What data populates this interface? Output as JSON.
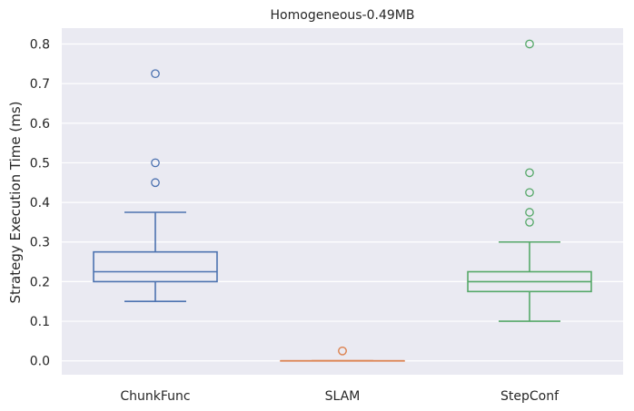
{
  "chart_data": {
    "type": "box",
    "title": "Homogeneous-0.49MB",
    "xlabel": "",
    "ylabel": "Strategy Execution Time (ms)",
    "ylim": [
      -0.035,
      0.84
    ],
    "yticks": [
      0.0,
      0.1,
      0.2,
      0.3,
      0.4,
      0.5,
      0.6,
      0.7,
      0.8
    ],
    "ytick_labels": [
      "0.0",
      "0.1",
      "0.2",
      "0.3",
      "0.4",
      "0.5",
      "0.6",
      "0.7",
      "0.8"
    ],
    "grid": true,
    "categories": [
      "ChunkFunc",
      "SLAM",
      "StepConf"
    ],
    "boxes": [
      {
        "category": "ChunkFunc",
        "color": "#4c72b0",
        "whisker_low": 0.15,
        "q1": 0.2,
        "median": 0.225,
        "q3": 0.275,
        "whisker_high": 0.375,
        "outliers": [
          0.45,
          0.5,
          0.725
        ]
      },
      {
        "category": "SLAM",
        "color": "#dd8452",
        "whisker_low": 0.0,
        "q1": 0.0,
        "median": 0.0,
        "q3": 0.0,
        "whisker_high": 0.0,
        "outliers": [
          0.025,
          0.025
        ]
      },
      {
        "category": "StepConf",
        "color": "#55a868",
        "whisker_low": 0.1,
        "q1": 0.175,
        "median": 0.2,
        "q3": 0.225,
        "whisker_high": 0.3,
        "outliers": [
          0.35,
          0.375,
          0.425,
          0.475,
          0.8
        ]
      }
    ],
    "colors": {
      "plot_background": "#eaeaf2",
      "grid": "#ffffff"
    }
  }
}
